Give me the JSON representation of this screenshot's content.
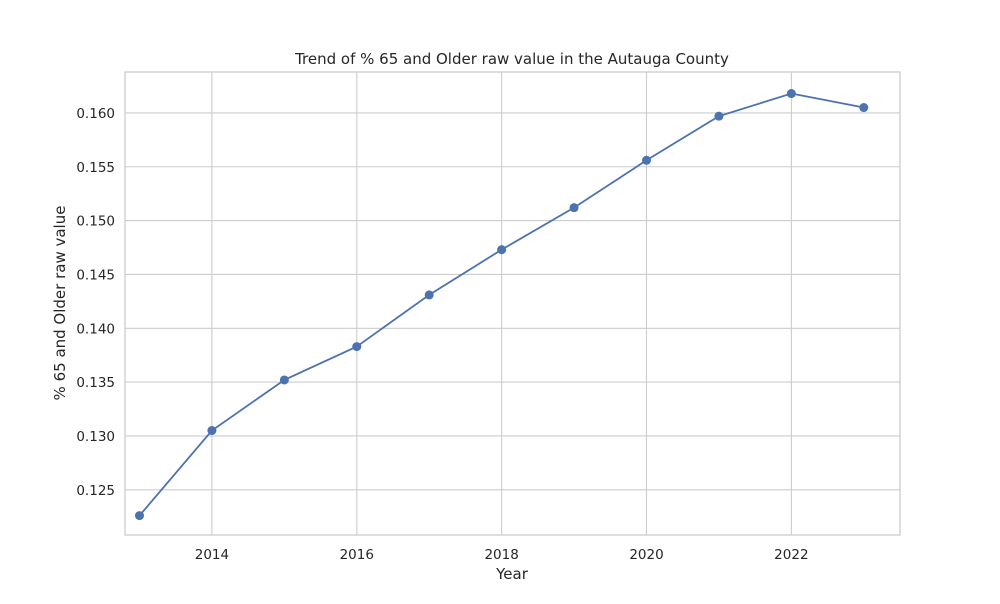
{
  "chart_data": {
    "type": "line",
    "title": "Trend of % 65 and Older raw value in the Autauga County",
    "xlabel": "Year",
    "ylabel": "% 65 and Older raw value",
    "xlim": [
      2012.8,
      2023.5
    ],
    "ylim": [
      0.1208,
      0.1638
    ],
    "x_ticks": [
      2014,
      2016,
      2018,
      2020,
      2022
    ],
    "x_tick_labels": [
      "2014",
      "2016",
      "2018",
      "2020",
      "2022"
    ],
    "y_ticks": [
      0.125,
      0.13,
      0.135,
      0.14,
      0.145,
      0.15,
      0.155,
      0.16
    ],
    "y_tick_labels": [
      "0.125",
      "0.130",
      "0.135",
      "0.140",
      "0.145",
      "0.150",
      "0.155",
      "0.160"
    ],
    "grid": true,
    "series": [
      {
        "color": "#4c72b0",
        "marker": "circle",
        "x": [
          2013,
          2014,
          2015,
          2016,
          2017,
          2018,
          2019,
          2020,
          2021,
          2022,
          2023
        ],
        "y": [
          0.1226,
          0.1305,
          0.1352,
          0.1383,
          0.1431,
          0.1473,
          0.1512,
          0.1556,
          0.1597,
          0.1618,
          0.1605
        ]
      }
    ]
  }
}
